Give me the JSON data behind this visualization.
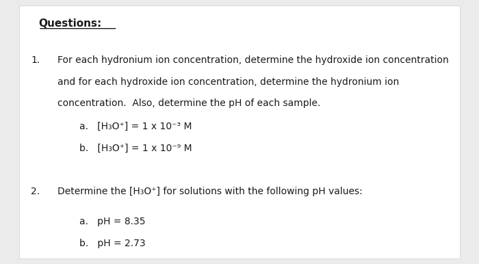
{
  "background_color": "#ebebeb",
  "page_bg": "#ffffff",
  "title": "Questions:",
  "title_fontsize": 11,
  "body_fontsize": 10,
  "q1_main_line1": "For each hydronium ion concentration, determine the hydroxide ion concentration",
  "q1_main_line2": "and for each hydroxide ion concentration, determine the hydronium ion",
  "q1_main_line3": "concentration.  Also, determine the pH of each sample.",
  "q1a": "[H₃O⁺] = 1 x 10⁻³ M",
  "q1b": "[H₃O⁺] = 1 x 10⁻⁹ M",
  "q2_main": "Determine the [H₃O⁺] for solutions with the following pH values:",
  "q2a": "pH = 8.35",
  "q2b": "pH = 2.73",
  "font_color": "#1a1a1a"
}
